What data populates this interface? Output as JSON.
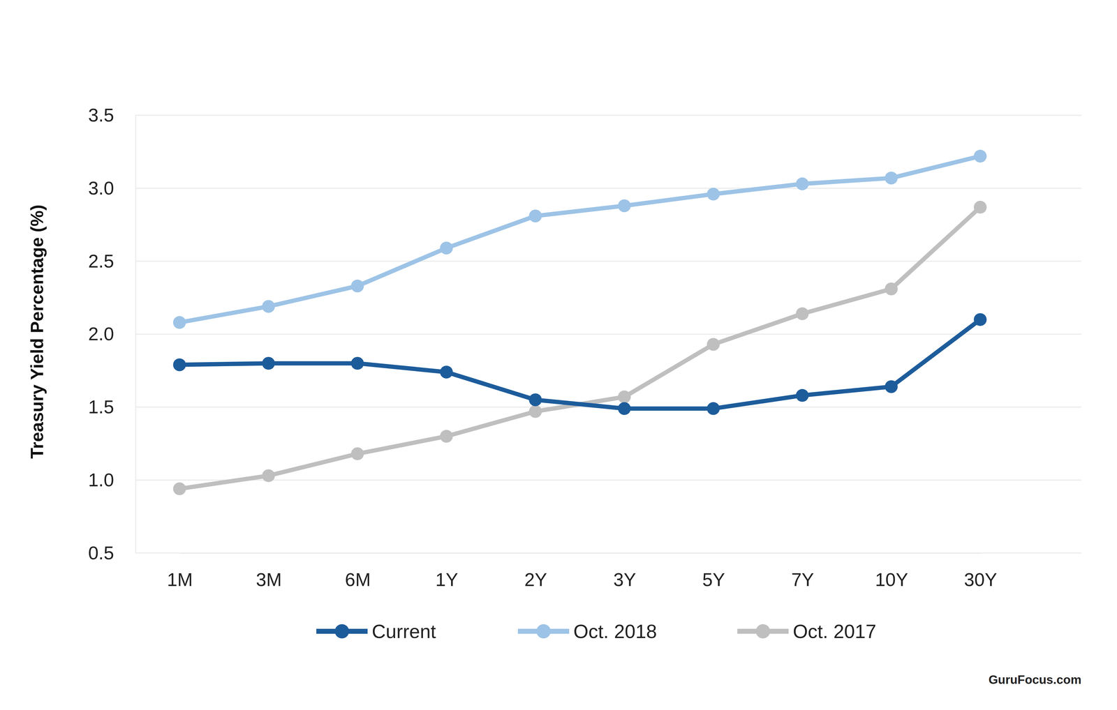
{
  "chart_data": {
    "type": "line",
    "y_label": "Treasury Yield Percentage (%)",
    "source": "GuruFocus.com",
    "categories": [
      "1M",
      "3M",
      "6M",
      "1Y",
      "2Y",
      "3Y",
      "5Y",
      "7Y",
      "10Y",
      "30Y"
    ],
    "series": [
      {
        "name": "Current",
        "color": "#1d5c9b",
        "values": [
          1.79,
          1.8,
          1.8,
          1.74,
          1.55,
          1.49,
          1.49,
          1.58,
          1.64,
          2.1
        ]
      },
      {
        "name": "Oct. 2018",
        "color": "#9dc3e6",
        "values": [
          2.08,
          2.19,
          2.33,
          2.59,
          2.81,
          2.88,
          2.96,
          3.03,
          3.07,
          3.22
        ]
      },
      {
        "name": "Oct. 2017",
        "color": "#bfbfbf",
        "values": [
          0.94,
          1.03,
          1.18,
          1.3,
          1.47,
          1.57,
          1.93,
          2.14,
          2.31,
          2.87
        ]
      }
    ],
    "ylim": [
      0.5,
      3.5
    ],
    "yticks": [
      0.5,
      {
        "value": 1,
        "label": "1.0"
      },
      1.5,
      {
        "value": 2,
        "label": "2.0"
      },
      2.5,
      {
        "value": 3,
        "label": "3.0"
      },
      3.5
    ],
    "grid": true,
    "legend": "bottom",
    "marker": "circle"
  }
}
